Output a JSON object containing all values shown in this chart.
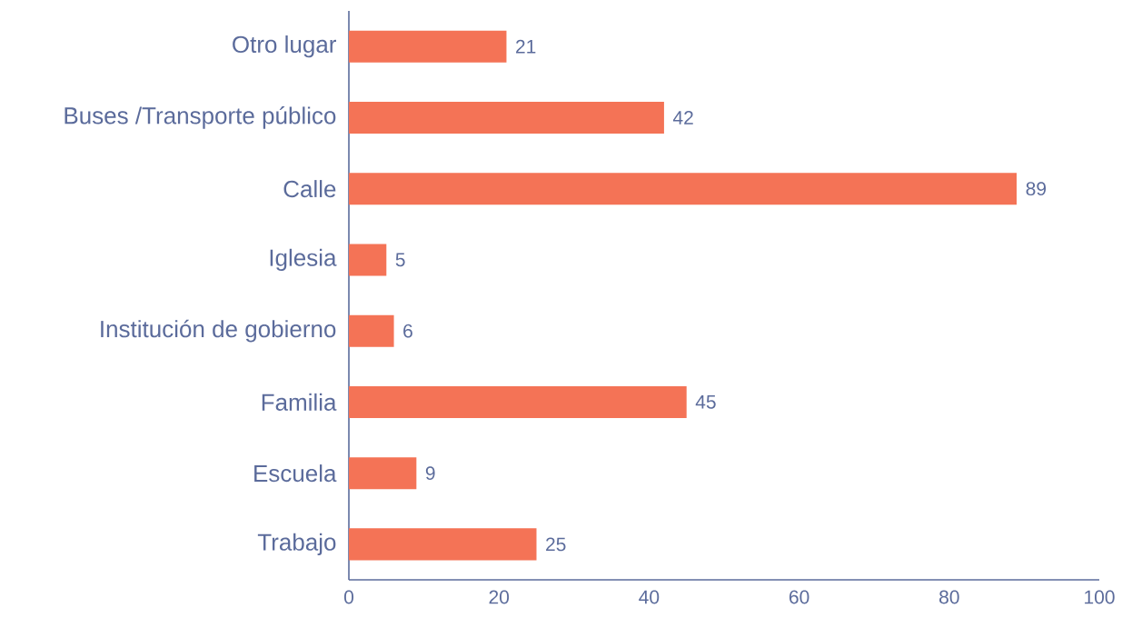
{
  "chart_data": {
    "type": "bar",
    "orientation": "horizontal",
    "categories": [
      "Otro lugar",
      "Buses /Transporte público",
      "Calle",
      "Iglesia",
      "Institución de gobierno",
      "Familia",
      "Escuela",
      "Trabajo"
    ],
    "values": [
      21,
      42,
      89,
      5,
      6,
      45,
      9,
      25
    ],
    "color": "#f47356",
    "xlim": [
      0,
      100
    ],
    "xticks": [
      0,
      20,
      40,
      60,
      80,
      100
    ],
    "data_labels": true
  }
}
